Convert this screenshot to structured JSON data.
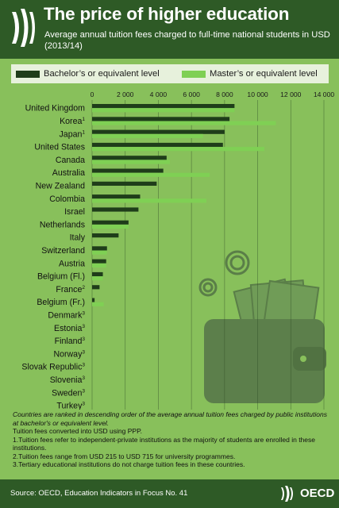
{
  "header": {
    "title": "The price of higher education",
    "subtitle": "Average annual tuition fees charged to full-time national students in USD (2013/14)"
  },
  "legend": {
    "bachelor": "Bachelor’s or equivalent level",
    "master": "Master’s or equivalent level"
  },
  "colors": {
    "background": "#88c05b",
    "header": "#2e5a26",
    "bachelor": "#1f3d1a",
    "master": "#7fd054",
    "legend_bg": "#e7f1dc",
    "wallet": "#5b7a48"
  },
  "chart_data": {
    "type": "bar",
    "orientation": "horizontal",
    "categories": [
      "United Kingdom",
      "Korea",
      "Japan",
      "United States",
      "Canada",
      "Australia",
      "New Zealand",
      "Colombia",
      "Israel",
      "Netherlands",
      "Italy",
      "Switzerland",
      "Austria",
      "Belgium (Fl.)",
      "France",
      "Belgium (Fr.)",
      "Denmark",
      "Estonia",
      "Finland",
      "Norway",
      "Slovak Republic",
      "Slovenia",
      "Sweden",
      "Turkey"
    ],
    "footnote_marks": [
      "",
      "1",
      "1",
      "",
      "",
      "",
      "",
      "",
      "",
      "",
      "",
      "",
      "",
      "",
      "2",
      "",
      "3",
      "3",
      "3",
      "3",
      "3",
      "3",
      "3",
      "3"
    ],
    "series": [
      {
        "name": "Bachelor’s or equivalent level",
        "values": [
          8600,
          8300,
          8000,
          7900,
          4500,
          4300,
          3900,
          2900,
          2800,
          2200,
          1600,
          900,
          850,
          650,
          450,
          150,
          0,
          0,
          0,
          0,
          0,
          0,
          0,
          0
        ]
      },
      {
        "name": "Master’s or equivalent level",
        "values": [
          8600,
          11100,
          6700,
          10400,
          4700,
          7100,
          null,
          6900,
          null,
          2200,
          null,
          900,
          850,
          650,
          null,
          700,
          0,
          0,
          0,
          0,
          0,
          0,
          0,
          0
        ]
      }
    ],
    "xlim": [
      0,
      14000
    ],
    "xticks": [
      "0",
      "2 000",
      "4 000",
      "6 000",
      "8 000",
      "10 000",
      "12 000",
      "14 000"
    ],
    "grid": true,
    "legend_position": "top"
  },
  "notes": {
    "ranking": "Countries are ranked in descending order of the average annual tuition fees charged by public institutions at bachelor's or equivalent level.",
    "ppp": "Tuition fees converted into USD using PPP.",
    "note1": "1.Tuition fees refer to independent-private institutions as the majority of students are enrolled in these institutions.",
    "note2": "2.Tuition fees range from USD 215 to USD 715 for university programmes.",
    "note3": "3.Tertiary educational institutions do not charge tuition fees in these countries."
  },
  "footer": {
    "source": "Source: OECD, Education Indicators in Focus No. 41",
    "logo_text": "OECD"
  }
}
